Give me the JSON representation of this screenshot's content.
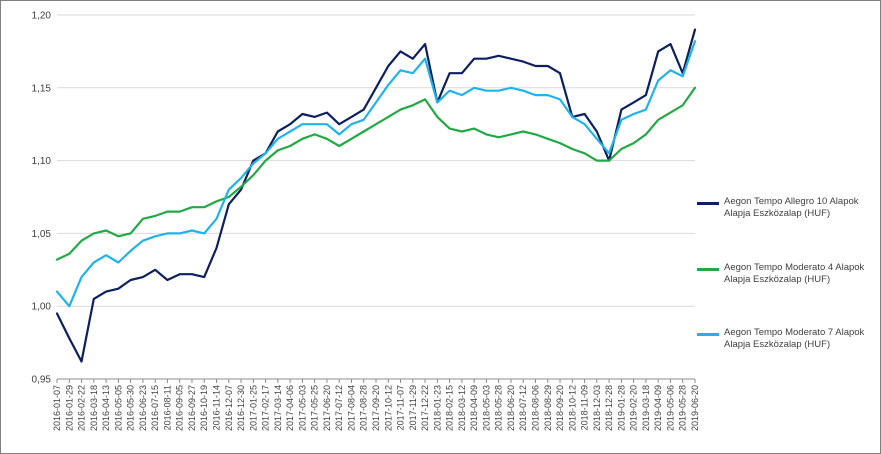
{
  "chart_data": {
    "type": "line",
    "title": "",
    "xlabel": "",
    "ylabel": "",
    "ylim": [
      0.95,
      1.2
    ],
    "y_ticks": [
      "0,95",
      "1,00",
      "1,05",
      "1,10",
      "1,15",
      "1,20"
    ],
    "y_tick_values": [
      0.95,
      1.0,
      1.05,
      1.1,
      1.15,
      1.2
    ],
    "x_tick_labels": [
      "2016-01-07",
      "2016-01-29",
      "2016-02-22",
      "2016-03-18",
      "2016-04-13",
      "2016-05-05",
      "2016-05-30",
      "2016-06-23",
      "2016-07-15",
      "2016-08-11",
      "2016-09-05",
      "2016-09-27",
      "2016-10-19",
      "2016-11-14",
      "2016-12-07",
      "2016-12-30",
      "2017-01-25",
      "2017-02-17",
      "2017-03-14",
      "2017-04-06",
      "2017-05-03",
      "2017-05-25",
      "2017-06-20",
      "2017-07-12",
      "2017-08-04",
      "2017-08-28",
      "2017-09-20",
      "2017-10-12",
      "2017-11-07",
      "2017-11-29",
      "2017-12-22",
      "2018-01-23",
      "2018-02-15",
      "2018-03-12",
      "2018-04-09",
      "2018-05-03",
      "2018-05-28",
      "2018-06-20",
      "2018-07-12",
      "2018-08-06",
      "2018-08-29",
      "2018-09-20",
      "2018-10-12",
      "2018-11-09",
      "2018-12-03",
      "2018-12-28",
      "2019-01-28",
      "2019-02-20",
      "2019-03-18",
      "2019-04-09",
      "2019-05-06",
      "2019-05-28",
      "2019-06-20"
    ],
    "grid": true,
    "legend_position": "right",
    "series": [
      {
        "name": "Aegon Tempo Allegro 10 Alapok Alapja Eszközalap (HUF)",
        "color": "#0d1f5c",
        "x_index": [
          0,
          1,
          2,
          3,
          4,
          5,
          6,
          7,
          8,
          9,
          10,
          11,
          12,
          13,
          14,
          15,
          16,
          17,
          18,
          19,
          20,
          21,
          22,
          23,
          24,
          25,
          26,
          27,
          28,
          29,
          30,
          31,
          32,
          33,
          34,
          35,
          36,
          37,
          38,
          39,
          40,
          41,
          42,
          43,
          44,
          45,
          46,
          47,
          48,
          49,
          50,
          51,
          52
        ],
        "values": [
          0.995,
          0.978,
          0.962,
          1.005,
          1.01,
          1.012,
          1.018,
          1.02,
          1.025,
          1.018,
          1.022,
          1.022,
          1.02,
          1.04,
          1.07,
          1.08,
          1.1,
          1.105,
          1.12,
          1.125,
          1.132,
          1.13,
          1.133,
          1.125,
          1.13,
          1.135,
          1.15,
          1.165,
          1.175,
          1.17,
          1.18,
          1.14,
          1.16,
          1.16,
          1.17,
          1.17,
          1.172,
          1.17,
          1.168,
          1.165,
          1.165,
          1.16,
          1.13,
          1.132,
          1.12,
          1.1,
          1.135,
          1.14,
          1.145,
          1.175,
          1.18,
          1.16,
          1.19
        ]
      },
      {
        "name": "Aegon Tempo Moderato 4 Alapok Alapja Eszközalap (HUF)",
        "color": "#22a845",
        "x_index": [
          0,
          1,
          2,
          3,
          4,
          5,
          6,
          7,
          8,
          9,
          10,
          11,
          12,
          13,
          14,
          15,
          16,
          17,
          18,
          19,
          20,
          21,
          22,
          23,
          24,
          25,
          26,
          27,
          28,
          29,
          30,
          31,
          32,
          33,
          34,
          35,
          36,
          37,
          38,
          39,
          40,
          41,
          42,
          43,
          44,
          45,
          46,
          47,
          48,
          49,
          50,
          51,
          52
        ],
        "values": [
          1.032,
          1.036,
          1.045,
          1.05,
          1.052,
          1.048,
          1.05,
          1.06,
          1.062,
          1.065,
          1.065,
          1.068,
          1.068,
          1.072,
          1.075,
          1.082,
          1.09,
          1.1,
          1.107,
          1.11,
          1.115,
          1.118,
          1.115,
          1.11,
          1.115,
          1.12,
          1.125,
          1.13,
          1.135,
          1.138,
          1.142,
          1.13,
          1.122,
          1.12,
          1.122,
          1.118,
          1.116,
          1.118,
          1.12,
          1.118,
          1.115,
          1.112,
          1.108,
          1.105,
          1.1,
          1.1,
          1.108,
          1.112,
          1.118,
          1.128,
          1.133,
          1.138,
          1.15
        ]
      },
      {
        "name": "Aegon Tempo Moderato 7 Alapok Alapja Eszközalap (HUF)",
        "color": "#1fb3e6",
        "x_index": [
          0,
          1,
          2,
          3,
          4,
          5,
          6,
          7,
          8,
          9,
          10,
          11,
          12,
          13,
          14,
          15,
          16,
          17,
          18,
          19,
          20,
          21,
          22,
          23,
          24,
          25,
          26,
          27,
          28,
          29,
          30,
          31,
          32,
          33,
          34,
          35,
          36,
          37,
          38,
          39,
          40,
          41,
          42,
          43,
          44,
          45,
          46,
          47,
          48,
          49,
          50,
          51,
          52
        ],
        "values": [
          1.01,
          1.0,
          1.02,
          1.03,
          1.035,
          1.03,
          1.038,
          1.045,
          1.048,
          1.05,
          1.05,
          1.052,
          1.05,
          1.06,
          1.08,
          1.088,
          1.098,
          1.105,
          1.115,
          1.12,
          1.125,
          1.125,
          1.125,
          1.118,
          1.125,
          1.128,
          1.14,
          1.152,
          1.162,
          1.16,
          1.17,
          1.14,
          1.148,
          1.145,
          1.15,
          1.148,
          1.148,
          1.15,
          1.148,
          1.145,
          1.145,
          1.142,
          1.13,
          1.125,
          1.115,
          1.105,
          1.128,
          1.132,
          1.135,
          1.155,
          1.162,
          1.158,
          1.182
        ]
      }
    ]
  }
}
